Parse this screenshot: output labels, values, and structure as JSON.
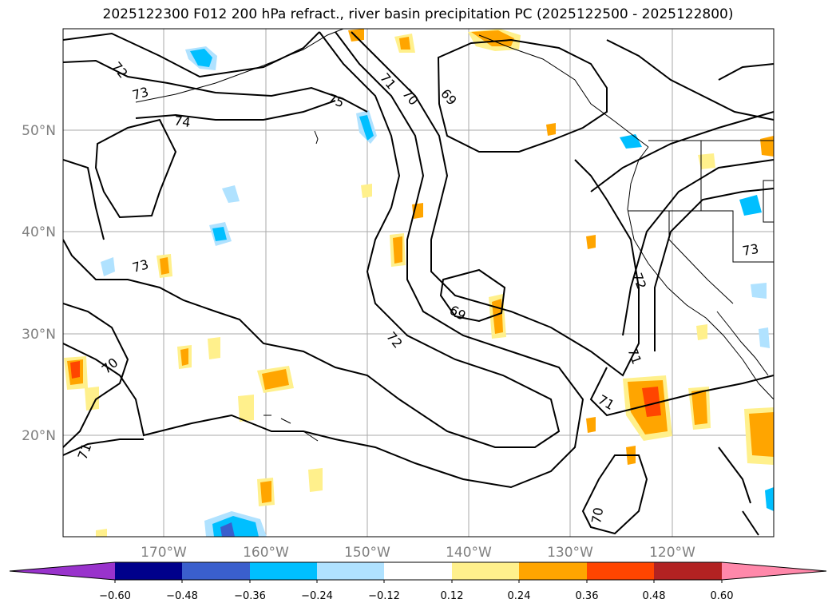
{
  "title": "2025122300 F012 200 hPa refract., river basin precipitation PC (2025122500 - 2025122800)",
  "lon_labels": [
    "170°W",
    "160°W",
    "150°W",
    "140°W",
    "130°W",
    "120°W"
  ],
  "lat_labels": [
    "50°N",
    "40°N",
    "30°N",
    "20°N"
  ],
  "contour_labels": [
    "72",
    "73",
    "74",
    "75",
    "71",
    "70",
    "69",
    "73",
    "69",
    "72",
    "70",
    "71",
    "71",
    "71",
    "73",
    "72",
    "70"
  ],
  "colorbar": {
    "ticks": [
      "−0.60",
      "−0.48",
      "−0.36",
      "−0.24",
      "−0.12",
      "0.12",
      "0.24",
      "0.36",
      "0.48",
      "0.60"
    ],
    "colors": [
      "#9933cc",
      "#00008b",
      "#3a5fcd",
      "#00bfff",
      "#b0e2ff",
      "#ffffff",
      "#fff08c",
      "#ffa500",
      "#ff4500",
      "#b22222",
      "#ff88aa"
    ]
  },
  "colors": {
    "contour": "#000000",
    "grid": "#aaaaaa",
    "coast": "#000000"
  }
}
